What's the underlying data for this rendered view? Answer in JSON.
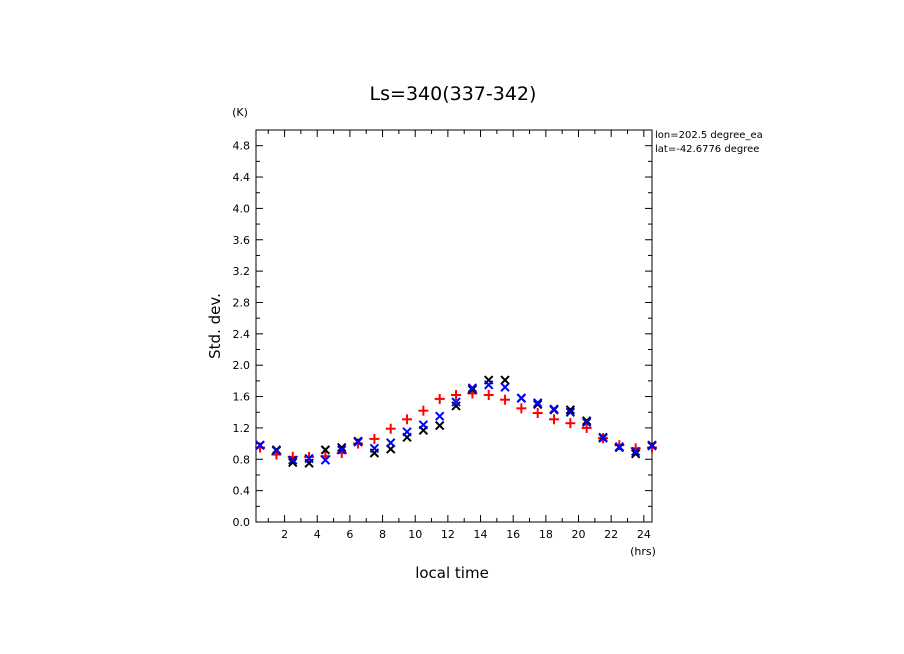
{
  "chart_data": {
    "type": "scatter",
    "title": "Ls=340(337-342)",
    "ylabel": "Std. dev.",
    "yunit": "(K)",
    "xlabel": "local time",
    "xunit": "(hrs)",
    "xlim": [
      0.25,
      24.5
    ],
    "ylim": [
      0.0,
      5.0
    ],
    "xticks": [
      2,
      4,
      6,
      8,
      10,
      12,
      14,
      16,
      18,
      20,
      22,
      24
    ],
    "yticks": [
      0.0,
      0.4,
      0.8,
      1.2,
      1.6,
      2.0,
      2.4,
      2.8,
      3.2,
      3.6,
      4.0,
      4.4,
      4.8
    ],
    "annotations": [
      "lon=202.5 degree_ea",
      "lat=-42.6776 degree"
    ],
    "grid": false,
    "series": [
      {
        "color": "#ff0000",
        "marker": "plus",
        "x": [
          0.5,
          1.5,
          2.5,
          3.5,
          4.5,
          5.5,
          6.5,
          7.5,
          8.5,
          9.5,
          10.5,
          11.5,
          12.5,
          13.5,
          14.5,
          15.5,
          16.5,
          17.5,
          18.5,
          19.5,
          20.5,
          21.5,
          22.5,
          23.5,
          24.5
        ],
        "y": [
          0.95,
          0.86,
          0.83,
          0.83,
          0.84,
          0.88,
          1.0,
          1.06,
          1.19,
          1.31,
          1.42,
          1.57,
          1.62,
          1.64,
          1.62,
          1.56,
          1.45,
          1.39,
          1.31,
          1.26,
          1.2,
          1.07,
          0.98,
          0.94,
          0.95
        ]
      },
      {
        "color": "#000000",
        "marker": "cross",
        "x": [
          0.5,
          1.5,
          2.5,
          3.5,
          4.5,
          5.5,
          6.5,
          7.5,
          8.5,
          9.5,
          10.5,
          11.5,
          12.5,
          13.5,
          14.5,
          15.5,
          16.5,
          17.5,
          18.5,
          19.5,
          20.5,
          21.5,
          22.5,
          23.5,
          24.5
        ],
        "y": [
          0.98,
          0.92,
          0.76,
          0.75,
          0.92,
          0.95,
          1.03,
          0.88,
          0.93,
          1.08,
          1.17,
          1.23,
          1.48,
          1.69,
          1.81,
          1.81,
          1.58,
          1.5,
          1.43,
          1.43,
          1.29,
          1.08,
          0.95,
          0.87,
          0.98
        ]
      },
      {
        "color": "#0000ff",
        "marker": "cross",
        "x": [
          0.5,
          1.5,
          2.5,
          3.5,
          4.5,
          5.5,
          6.5,
          7.5,
          8.5,
          9.5,
          10.5,
          11.5,
          12.5,
          13.5,
          14.5,
          15.5,
          16.5,
          17.5,
          18.5,
          19.5,
          20.5,
          21.5,
          22.5,
          23.5,
          24.5
        ],
        "y": [
          0.98,
          0.91,
          0.79,
          0.81,
          0.79,
          0.92,
          1.02,
          0.94,
          1.01,
          1.15,
          1.24,
          1.35,
          1.53,
          1.71,
          1.75,
          1.72,
          1.58,
          1.52,
          1.44,
          1.4,
          1.27,
          1.07,
          0.96,
          0.9,
          0.97
        ]
      }
    ]
  }
}
